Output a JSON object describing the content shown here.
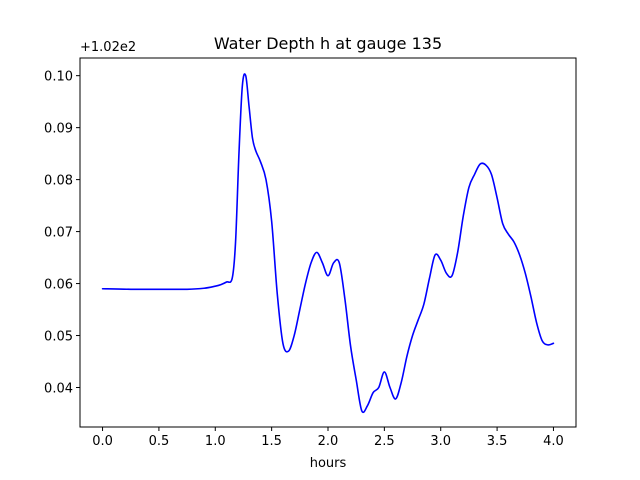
{
  "chart_data": {
    "type": "line",
    "title": "Water Depth h at gauge 135",
    "xlabel": "hours",
    "ylabel": "",
    "offset_label": "+1.02e2",
    "xlim": [
      -0.2,
      4.2
    ],
    "ylim": [
      0.0324,
      0.1034
    ],
    "x_ticks": [
      0.0,
      0.5,
      1.0,
      1.5,
      2.0,
      2.5,
      3.0,
      3.5,
      4.0
    ],
    "x_tick_labels": [
      "0.0",
      "0.5",
      "1.0",
      "1.5",
      "2.0",
      "2.5",
      "3.0",
      "3.5",
      "4.0"
    ],
    "y_ticks": [
      0.04,
      0.05,
      0.06,
      0.07,
      0.08,
      0.09,
      0.1
    ],
    "y_tick_labels": [
      "0.04",
      "0.05",
      "0.06",
      "0.07",
      "0.08",
      "0.09",
      "0.10"
    ],
    "grid": false,
    "series": [
      {
        "color": "#0000ff",
        "x": [
          0.0,
          0.25,
          0.5,
          0.75,
          0.9,
          1.0,
          1.05,
          1.1,
          1.15,
          1.18,
          1.21,
          1.24,
          1.27,
          1.3,
          1.33,
          1.36,
          1.4,
          1.45,
          1.5,
          1.55,
          1.6,
          1.65,
          1.7,
          1.75,
          1.8,
          1.85,
          1.9,
          1.95,
          2.0,
          2.05,
          2.1,
          2.15,
          2.2,
          2.25,
          2.3,
          2.35,
          2.4,
          2.45,
          2.5,
          2.55,
          2.6,
          2.65,
          2.7,
          2.75,
          2.8,
          2.85,
          2.9,
          2.95,
          3.0,
          3.05,
          3.1,
          3.15,
          3.2,
          3.25,
          3.3,
          3.35,
          3.4,
          3.45,
          3.5,
          3.55,
          3.6,
          3.65,
          3.7,
          3.75,
          3.8,
          3.85,
          3.9,
          3.95,
          4.0
        ],
        "y": [
          0.059,
          0.0589,
          0.0589,
          0.0589,
          0.0591,
          0.0595,
          0.0598,
          0.0603,
          0.061,
          0.068,
          0.085,
          0.098,
          0.1,
          0.094,
          0.088,
          0.0855,
          0.0835,
          0.08,
          0.072,
          0.058,
          0.0485,
          0.047,
          0.05,
          0.055,
          0.06,
          0.064,
          0.066,
          0.064,
          0.0615,
          0.064,
          0.064,
          0.057,
          0.048,
          0.0415,
          0.0355,
          0.0365,
          0.039,
          0.04,
          0.043,
          0.04,
          0.0378,
          0.041,
          0.046,
          0.05,
          0.053,
          0.056,
          0.061,
          0.0655,
          0.0645,
          0.062,
          0.0615,
          0.066,
          0.073,
          0.0785,
          0.081,
          0.083,
          0.0828,
          0.081,
          0.0765,
          0.0715,
          0.0695,
          0.068,
          0.0655,
          0.062,
          0.0575,
          0.0525,
          0.049,
          0.0482,
          0.0485
        ]
      }
    ]
  }
}
